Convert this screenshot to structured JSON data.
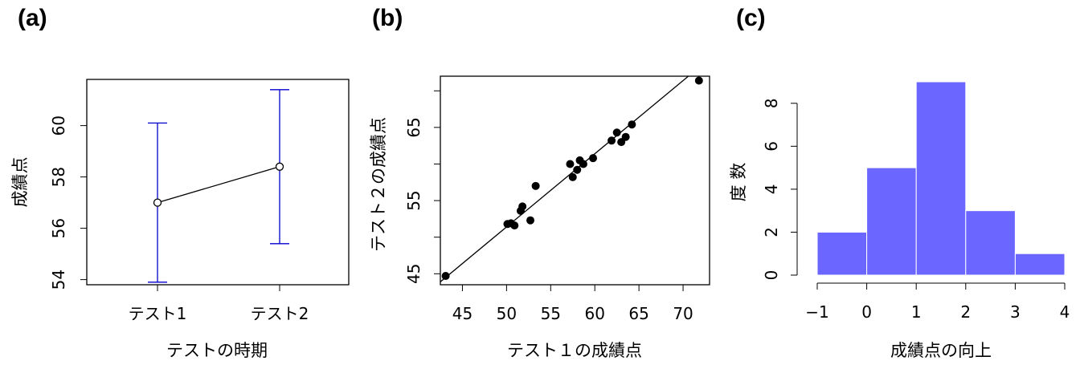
{
  "chart_data": [
    {
      "panel_label": "(a)",
      "type": "line",
      "xlabel": "テストの時期",
      "ylabel": "成績点",
      "categories": [
        "テスト1",
        "テスト2"
      ],
      "values": [
        57.0,
        58.4
      ],
      "error_bars": [
        {
          "low": 53.9,
          "high": 60.1
        },
        {
          "low": 55.4,
          "high": 61.4
        }
      ],
      "ylim": [
        53.8,
        61.8
      ],
      "yticks": [
        54,
        56,
        58,
        60
      ],
      "xticks": [
        "テスト1",
        "テスト2"
      ],
      "colors": {
        "line": "#000000",
        "error_bar": "#0000cc"
      }
    },
    {
      "panel_label": "(b)",
      "type": "scatter",
      "xlabel": "テスト１の成績点",
      "ylabel": "テスト２の成績点",
      "xlim": [
        42.5,
        73
      ],
      "ylim": [
        43.5,
        72
      ],
      "xticks": [
        45,
        50,
        55,
        60,
        65,
        70
      ],
      "yticks": [
        45,
        55,
        65
      ],
      "points": [
        {
          "x": 43.1,
          "y": 44.7
        },
        {
          "x": 50.1,
          "y": 51.8
        },
        {
          "x": 50.5,
          "y": 51.9
        },
        {
          "x": 50.9,
          "y": 51.6
        },
        {
          "x": 51.6,
          "y": 53.6
        },
        {
          "x": 51.8,
          "y": 54.2
        },
        {
          "x": 52.7,
          "y": 52.3
        },
        {
          "x": 53.3,
          "y": 57.0
        },
        {
          "x": 57.2,
          "y": 60.0
        },
        {
          "x": 57.5,
          "y": 58.2
        },
        {
          "x": 58.0,
          "y": 59.2
        },
        {
          "x": 58.3,
          "y": 60.5
        },
        {
          "x": 58.7,
          "y": 60.0
        },
        {
          "x": 59.8,
          "y": 60.8
        },
        {
          "x": 61.9,
          "y": 63.2
        },
        {
          "x": 62.5,
          "y": 64.3
        },
        {
          "x": 63.0,
          "y": 63.0
        },
        {
          "x": 63.5,
          "y": 63.7
        },
        {
          "x": 64.2,
          "y": 65.4
        },
        {
          "x": 71.8,
          "y": 71.4
        }
      ],
      "reference_line": {
        "intercept": 1.4,
        "slope": 1.0
      },
      "colors": {
        "points": "#000000",
        "line": "#000000"
      }
    },
    {
      "panel_label": "(c)",
      "type": "bar",
      "subtype": "histogram",
      "xlabel": "成績点の向上",
      "ylabel": "度 数",
      "bins": [
        [
          -1,
          0
        ],
        [
          0,
          1
        ],
        [
          1,
          2
        ],
        [
          2,
          3
        ],
        [
          3,
          4
        ]
      ],
      "values": [
        2,
        5,
        9,
        3,
        1
      ],
      "xlim": [
        -1,
        4
      ],
      "ylim": [
        0,
        9
      ],
      "xticks": [
        -1,
        0,
        1,
        2,
        3,
        4
      ],
      "yticks": [
        0,
        2,
        4,
        6,
        8
      ],
      "colors": {
        "bar": "#6b66ff",
        "bar_border": "#ffffff"
      }
    }
  ]
}
